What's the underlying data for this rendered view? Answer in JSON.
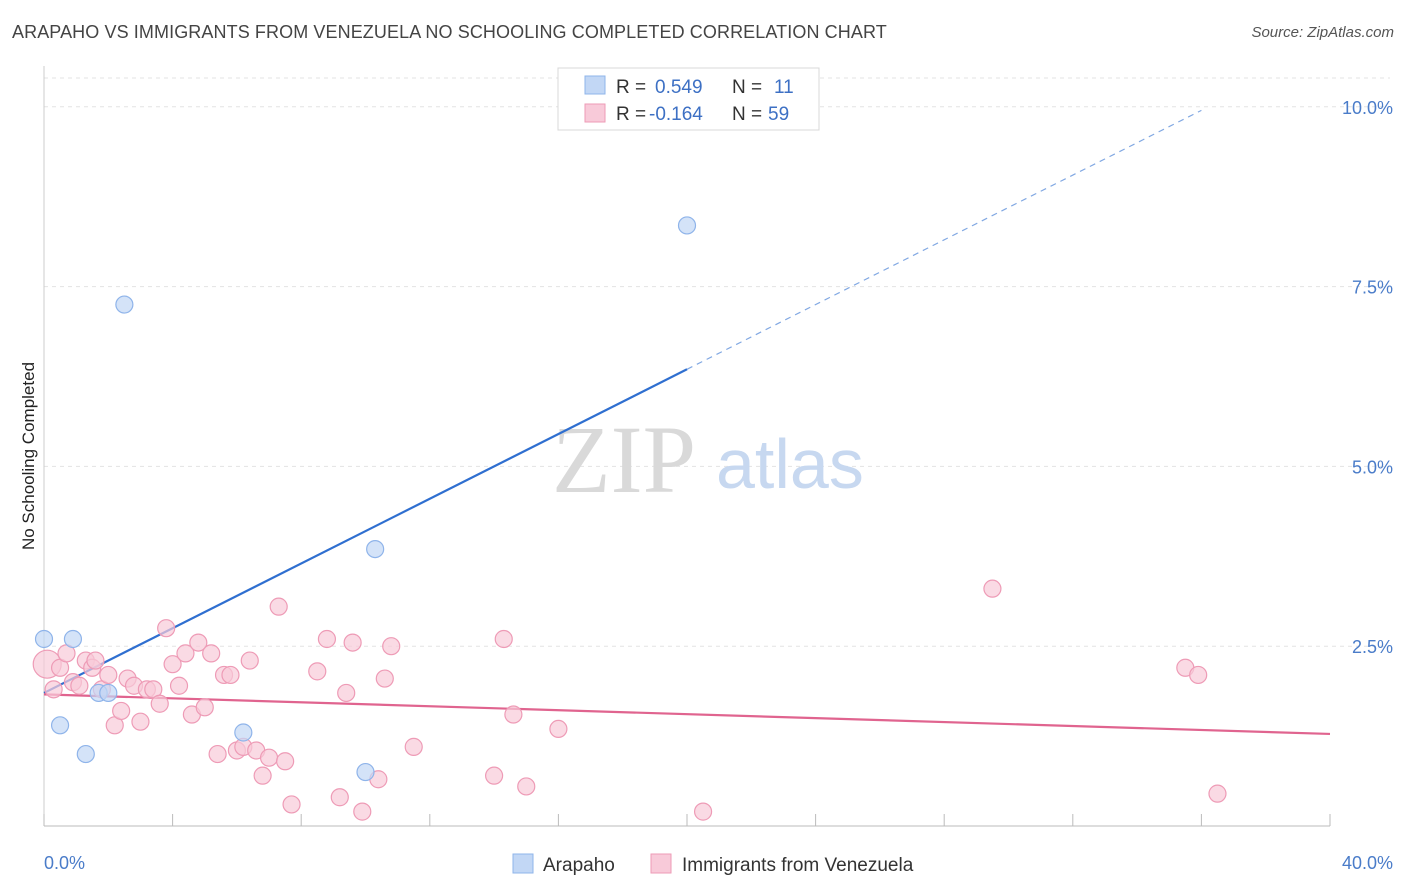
{
  "title": "ARAPAHO VS IMMIGRANTS FROM VENEZUELA NO SCHOOLING COMPLETED CORRELATION CHART",
  "source": "Source: ZipAtlas.com",
  "watermark": {
    "zip": "ZIP",
    "atlas": "atlas"
  },
  "chart_data": {
    "type": "scatter",
    "ylabel": "No Schooling Completed",
    "xlim": [
      0,
      40
    ],
    "ylim": [
      0,
      10.4
    ],
    "x_tick_labels": [
      "0.0%",
      "40.0%"
    ],
    "y_ticks": [
      2.5,
      5.0,
      7.5,
      10.0
    ],
    "y_tick_labels": [
      "2.5%",
      "5.0%",
      "7.5%",
      "10.0%"
    ],
    "grid": true,
    "legend_position": "top-center",
    "legend": [
      {
        "r_label": "R = ",
        "r_value": "0.549",
        "n_label": "N = ",
        "n_value": "11"
      },
      {
        "r_label": "R = ",
        "r_value": "-0.164",
        "n_label": "N = ",
        "n_value": "59"
      }
    ],
    "series": [
      {
        "name": "Arapaho",
        "color": "#8fb4ea",
        "fill": "#c2d7f5",
        "line_color": "#2f6fd0",
        "trend": {
          "x0": 0,
          "y0": 1.85,
          "x1": 20,
          "y1": 6.35,
          "dash_to_x": 36,
          "dash_to_y": 9.95
        },
        "points": [
          [
            0.0,
            2.6
          ],
          [
            0.5,
            1.4
          ],
          [
            0.9,
            2.6
          ],
          [
            1.3,
            1.0
          ],
          [
            1.7,
            1.85
          ],
          [
            2.0,
            1.85
          ],
          [
            2.5,
            7.25
          ],
          [
            6.2,
            1.3
          ],
          [
            10.3,
            3.85
          ],
          [
            10.0,
            0.75
          ],
          [
            20.0,
            8.35
          ]
        ]
      },
      {
        "name": "Immigrants from Venezuela",
        "color": "#ee9bb6",
        "fill": "#f8cad9",
        "line_color": "#e0648f",
        "trend": {
          "x0": 0,
          "y0": 1.83,
          "x1": 40,
          "y1": 1.28
        },
        "points": [
          [
            0.1,
            2.25
          ],
          [
            0.3,
            1.9
          ],
          [
            0.5,
            2.2
          ],
          [
            0.7,
            2.4
          ],
          [
            0.9,
            2.0
          ],
          [
            1.1,
            1.95
          ],
          [
            1.3,
            2.3
          ],
          [
            1.5,
            2.2
          ],
          [
            1.6,
            2.3
          ],
          [
            1.8,
            1.9
          ],
          [
            2.0,
            2.1
          ],
          [
            2.2,
            1.4
          ],
          [
            2.4,
            1.6
          ],
          [
            2.6,
            2.05
          ],
          [
            2.8,
            1.95
          ],
          [
            3.0,
            1.45
          ],
          [
            3.2,
            1.9
          ],
          [
            3.4,
            1.9
          ],
          [
            3.6,
            1.7
          ],
          [
            3.8,
            2.75
          ],
          [
            4.0,
            2.25
          ],
          [
            4.2,
            1.95
          ],
          [
            4.4,
            2.4
          ],
          [
            4.6,
            1.55
          ],
          [
            4.8,
            2.55
          ],
          [
            5.0,
            1.65
          ],
          [
            5.2,
            2.4
          ],
          [
            5.4,
            1.0
          ],
          [
            5.6,
            2.1
          ],
          [
            5.8,
            2.1
          ],
          [
            6.0,
            1.05
          ],
          [
            6.2,
            1.1
          ],
          [
            6.4,
            2.3
          ],
          [
            6.6,
            1.05
          ],
          [
            6.8,
            0.7
          ],
          [
            7.0,
            0.95
          ],
          [
            7.5,
            0.9
          ],
          [
            7.7,
            0.3
          ],
          [
            7.3,
            3.05
          ],
          [
            8.5,
            2.15
          ],
          [
            8.8,
            2.6
          ],
          [
            9.2,
            0.4
          ],
          [
            9.4,
            1.85
          ],
          [
            9.6,
            2.55
          ],
          [
            9.9,
            0.2
          ],
          [
            10.4,
            0.65
          ],
          [
            10.6,
            2.05
          ],
          [
            10.8,
            2.5
          ],
          [
            11.5,
            1.1
          ],
          [
            14.0,
            0.7
          ],
          [
            14.3,
            2.6
          ],
          [
            14.6,
            1.55
          ],
          [
            15.0,
            0.55
          ],
          [
            16.0,
            1.35
          ],
          [
            20.5,
            0.2
          ],
          [
            29.5,
            3.3
          ],
          [
            35.5,
            2.2
          ],
          [
            35.9,
            2.1
          ],
          [
            36.5,
            0.45
          ]
        ]
      }
    ]
  }
}
